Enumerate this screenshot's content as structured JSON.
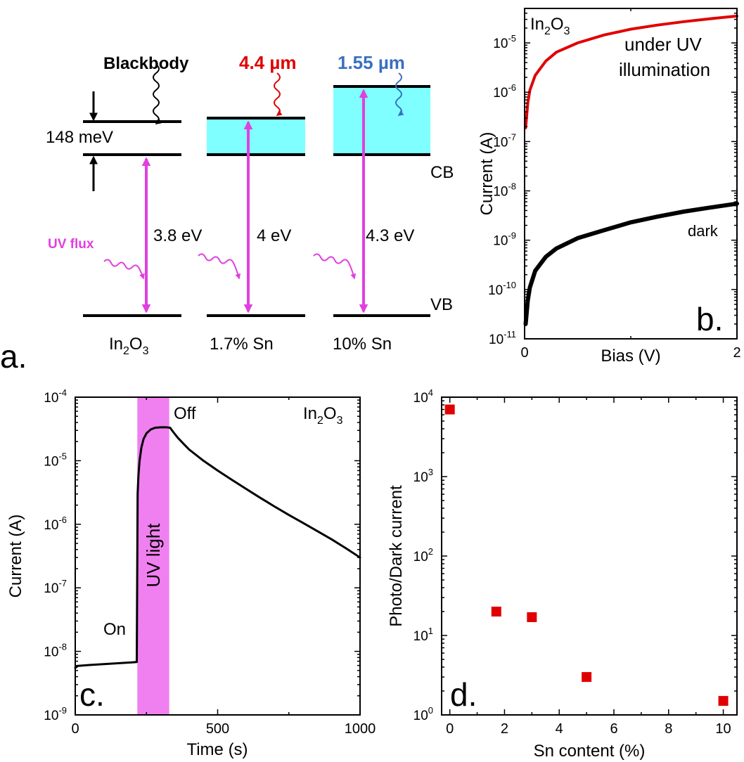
{
  "colors": {
    "magenta": "#e040e0",
    "cyan": "#7fffff",
    "red": "#e00000",
    "blue": "#3a6fbf",
    "uv_band": "#f080f0",
    "black": "#000000"
  },
  "panel_a": {
    "letter": "a.",
    "blackbody": "Blackbody",
    "lambda1": "4.4 µm",
    "lambda2": "1.55 µm",
    "gap_label": "148 meV",
    "cb": "CB",
    "vb": "VB",
    "uv_flux": "UV flux",
    "gap1": "3.8 eV",
    "gap2": "4 eV",
    "gap3": "4.3 eV",
    "mat1_base": "In",
    "mat1_sub1": "2",
    "mat1_mid": "O",
    "mat1_sub2": "3",
    "mat2": "1.7% Sn",
    "mat3": "10% Sn"
  },
  "panel_b": {
    "letter": "b.",
    "material_base": "In",
    "material_sub1": "2",
    "material_mid": "O",
    "material_sub2": "3",
    "uv_label_1": "under UV",
    "uv_label_2": "illumination",
    "dark_label": "dark"
  },
  "panel_c": {
    "letter": "c.",
    "material_base": "In",
    "material_sub1": "2",
    "material_mid": "O",
    "material_sub2": "3",
    "on_label": "On",
    "off_label": "Off",
    "uv_light": "UV light"
  },
  "panel_d": {
    "letter": "d."
  },
  "chart_data": [
    {
      "type": "line",
      "panel": "b",
      "xlabel": "Bias (V)",
      "ylabel": "Current (A)",
      "xlim": [
        0,
        2
      ],
      "ylim": [
        1e-11,
        5e-05
      ],
      "yscale": "log",
      "xticks": [
        0,
        2
      ],
      "xtick_labels": [
        "0",
        "2"
      ],
      "yticks": [
        1e-11,
        1e-10,
        1e-09,
        1e-08,
        1e-07,
        1e-06,
        1e-05
      ],
      "ytick_base": "10",
      "ytick_exponents": [
        "-11",
        "-10",
        "-9",
        "-8",
        "-7",
        "-6",
        "-5"
      ],
      "series": [
        {
          "color": "#e00000",
          "x": [
            0.01,
            0.03,
            0.05,
            0.1,
            0.2,
            0.3,
            0.5,
            0.75,
            1.0,
            1.25,
            1.5,
            1.75,
            2.0
          ],
          "y": [
            1.9e-07,
            6e-07,
            1.1e-06,
            2.2e-06,
            4.3e-06,
            6.5e-06,
            1e-05,
            1.45e-05,
            1.9e-05,
            2.3e-05,
            2.7e-05,
            3.1e-05,
            3.5e-05
          ]
        },
        {
          "color": "#000000",
          "x": [
            0.01,
            0.03,
            0.05,
            0.1,
            0.2,
            0.3,
            0.5,
            0.75,
            1.0,
            1.25,
            1.5,
            1.75,
            2.0
          ],
          "y": [
            2e-11,
            6e-11,
            1.1e-10,
            2.4e-10,
            4.6e-10,
            6.8e-10,
            1.1e-09,
            1.6e-09,
            2.3e-09,
            3e-09,
            3.8e-09,
            4.6e-09,
            5.5e-09
          ]
        }
      ]
    },
    {
      "type": "line",
      "panel": "c",
      "xlabel": "Time (s)",
      "ylabel": "Current (A)",
      "xlim": [
        0,
        1000
      ],
      "ylim": [
        1e-09,
        0.0001
      ],
      "yscale": "log",
      "xticks": [
        0,
        500,
        1000
      ],
      "xtick_labels": [
        "0",
        "500",
        "1000"
      ],
      "yticks": [
        1e-09,
        1e-08,
        1e-07,
        1e-06,
        1e-05,
        0.0001
      ],
      "ytick_base": "10",
      "ytick_exponents": [
        "-9",
        "-8",
        "-7",
        "-6",
        "-5",
        "-4"
      ],
      "uv_interval": [
        218,
        330
      ],
      "series": [
        {
          "color": "#000000",
          "x": [
            0,
            10,
            50,
            100,
            150,
            200,
            216,
            219,
            222,
            226,
            232,
            240,
            250,
            265,
            280,
            300,
            320,
            333,
            345,
            360,
            380,
            400,
            450,
            500,
            550,
            600,
            650,
            700,
            750,
            800,
            850,
            900,
            950,
            1000
          ],
          "y": [
            5.5e-09,
            5.9e-09,
            6.1e-09,
            6.3e-09,
            6.5e-09,
            6.7e-09,
            6.8e-09,
            3e-06,
            6e-06,
            1e-05,
            1.6e-05,
            2.2e-05,
            2.7e-05,
            3.1e-05,
            3.3e-05,
            3.35e-05,
            3.35e-05,
            3.3e-05,
            2.8e-05,
            2.3e-05,
            1.85e-05,
            1.5e-05,
            1e-05,
            7e-06,
            5e-06,
            3.6e-06,
            2.6e-06,
            1.9e-06,
            1.4e-06,
            1.05e-06,
            7.8e-07,
            5.8e-07,
            4.2e-07,
            3e-07
          ]
        }
      ]
    },
    {
      "type": "scatter",
      "panel": "d",
      "xlabel": "Sn content (%)",
      "ylabel": "Photo/Dark current",
      "xlim": [
        -0.3,
        10.5
      ],
      "ylim": [
        1,
        10000.0
      ],
      "yscale": "log",
      "xticks": [
        0,
        2,
        4,
        6,
        8,
        10
      ],
      "xtick_labels": [
        "0",
        "2",
        "4",
        "6",
        "8",
        "10"
      ],
      "yticks": [
        1,
        10,
        100,
        1000,
        10000
      ],
      "ytick_base": "10",
      "ytick_exponents": [
        "0",
        "1",
        "2",
        "3",
        "4"
      ],
      "series": [
        {
          "color": "#e00000",
          "x": [
            0,
            1.7,
            3,
            5,
            10
          ],
          "y": [
            7000,
            20,
            17,
            3,
            1.5
          ]
        }
      ]
    }
  ]
}
